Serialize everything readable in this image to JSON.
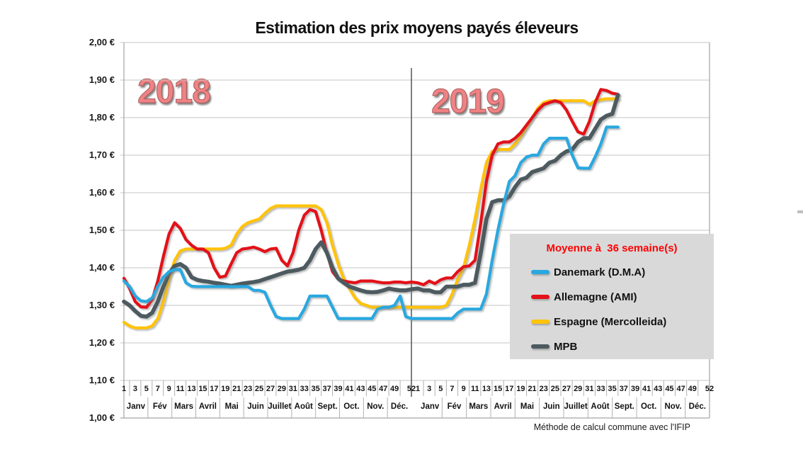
{
  "footer": {
    "note": "Méthode de calcul commune avec l'IFIP"
  },
  "legend": {
    "title": "Moyenne à  36 semaine(s)",
    "items": [
      {
        "label": "Danemark (D.M.A)"
      },
      {
        "label": "Allemagne (AMI)"
      },
      {
        "label": "Espagne (Mercolleida)"
      },
      {
        "label": "MPB"
      }
    ]
  },
  "chart_data": {
    "type": "line",
    "title": "Estimation des prix moyens payés éleveurs",
    "currency": "EUR",
    "ylim": [
      1.0,
      2.0
    ],
    "ytick_step": 0.1,
    "ytick_labels": [
      "2,00 €",
      "1,90 €",
      "1,80 €",
      "1,70 €",
      "1,60 €",
      "1,50 €",
      "1,40 €",
      "1,30 €",
      "1,20 €",
      "1,10 €",
      "1,00 €"
    ],
    "x_axis": {
      "years": [
        "2018",
        "2019"
      ],
      "week_ticks": [
        "1",
        "3",
        "5",
        "7",
        "9",
        "11",
        "13",
        "15",
        "17",
        "19",
        "21",
        "23",
        "25",
        "27",
        "29",
        "31",
        "33",
        "35",
        "37",
        "39",
        "41",
        "43",
        "45",
        "47",
        "49",
        "52"
      ],
      "months": [
        "Janv",
        "Fév",
        "Mars",
        "Avril",
        "Mai",
        "Juin",
        "Juillet",
        "Août",
        "Sept.",
        "Oct.",
        "Nov.",
        "Déc."
      ]
    },
    "grid": true,
    "legend_position": "right-middle",
    "series": [
      {
        "name": "Danemark (D.M.A)",
        "color": "#29A8E0",
        "values_2018": [
          1.365,
          1.35,
          1.325,
          1.312,
          1.31,
          1.32,
          1.35,
          1.375,
          1.39,
          1.395,
          1.395,
          1.36,
          1.351,
          1.35,
          1.35,
          1.35,
          1.35,
          1.35,
          1.35,
          1.35,
          1.35,
          1.35,
          1.35,
          1.34,
          1.34,
          1.335,
          1.3,
          1.27,
          1.265,
          1.265,
          1.265,
          1.265,
          1.29,
          1.325,
          1.325,
          1.325,
          1.325,
          1.295,
          1.265,
          1.265,
          1.265,
          1.265,
          1.265,
          1.265,
          1.265,
          1.29,
          1.295,
          1.295,
          1.3,
          1.325,
          1.27,
          1.265
        ],
        "values_2019": [
          1.265,
          1.265,
          1.265,
          1.265,
          1.265,
          1.265,
          1.265,
          1.28,
          1.29,
          1.29,
          1.29,
          1.29,
          1.33,
          1.42,
          1.5,
          1.57,
          1.63,
          1.645,
          1.68,
          1.695,
          1.7,
          1.7,
          1.73,
          1.745,
          1.745,
          1.745,
          1.745,
          1.7,
          1.666,
          1.665,
          1.665,
          1.695,
          1.73,
          1.775,
          1.775,
          1.775
        ]
      },
      {
        "name": "Allemagne (AMI)",
        "color": "#E31119",
        "values_2018": [
          1.372,
          1.345,
          1.31,
          1.296,
          1.295,
          1.315,
          1.365,
          1.43,
          1.49,
          1.52,
          1.505,
          1.475,
          1.46,
          1.45,
          1.45,
          1.44,
          1.4,
          1.375,
          1.378,
          1.41,
          1.44,
          1.45,
          1.452,
          1.455,
          1.45,
          1.443,
          1.45,
          1.452,
          1.42,
          1.405,
          1.44,
          1.5,
          1.54,
          1.555,
          1.55,
          1.5,
          1.44,
          1.39,
          1.37,
          1.365,
          1.362,
          1.36,
          1.365,
          1.365,
          1.365,
          1.362,
          1.36,
          1.36,
          1.362,
          1.362,
          1.36,
          1.362
        ],
        "values_2019": [
          1.36,
          1.355,
          1.365,
          1.358,
          1.368,
          1.373,
          1.373,
          1.39,
          1.403,
          1.405,
          1.42,
          1.52,
          1.63,
          1.7,
          1.73,
          1.735,
          1.735,
          1.745,
          1.76,
          1.78,
          1.8,
          1.82,
          1.835,
          1.84,
          1.845,
          1.84,
          1.82,
          1.79,
          1.762,
          1.756,
          1.79,
          1.84,
          1.875,
          1.872,
          1.865,
          1.862
        ]
      },
      {
        "name": "Espagne (Mercolleida)",
        "color": "#FFC30B",
        "values_2018": [
          1.255,
          1.245,
          1.24,
          1.24,
          1.24,
          1.245,
          1.265,
          1.31,
          1.37,
          1.42,
          1.445,
          1.45,
          1.45,
          1.45,
          1.45,
          1.45,
          1.45,
          1.45,
          1.452,
          1.46,
          1.49,
          1.51,
          1.52,
          1.525,
          1.53,
          1.545,
          1.558,
          1.565,
          1.565,
          1.565,
          1.565,
          1.565,
          1.565,
          1.565,
          1.565,
          1.555,
          1.52,
          1.46,
          1.41,
          1.37,
          1.345,
          1.32,
          1.305,
          1.3,
          1.295,
          1.295,
          1.295,
          1.295,
          1.295,
          1.295,
          1.295,
          1.295
        ],
        "values_2019": [
          1.295,
          1.295,
          1.295,
          1.295,
          1.295,
          1.3,
          1.33,
          1.37,
          1.4,
          1.46,
          1.53,
          1.61,
          1.68,
          1.71,
          1.715,
          1.715,
          1.715,
          1.73,
          1.75,
          1.775,
          1.8,
          1.825,
          1.84,
          1.845,
          1.845,
          1.845,
          1.845,
          1.845,
          1.845,
          1.845,
          1.835,
          1.845,
          1.848,
          1.85,
          1.85,
          1.85
        ]
      },
      {
        "name": "MPB",
        "color": "#4D5A5F",
        "values_2018": [
          1.31,
          1.3,
          1.285,
          1.272,
          1.27,
          1.28,
          1.31,
          1.35,
          1.385,
          1.405,
          1.41,
          1.4,
          1.375,
          1.368,
          1.365,
          1.363,
          1.36,
          1.358,
          1.355,
          1.352,
          1.355,
          1.358,
          1.36,
          1.362,
          1.365,
          1.37,
          1.375,
          1.38,
          1.385,
          1.39,
          1.392,
          1.395,
          1.4,
          1.42,
          1.45,
          1.468,
          1.44,
          1.4,
          1.372,
          1.36,
          1.35,
          1.345,
          1.34,
          1.336,
          1.335,
          1.336,
          1.34,
          1.345,
          1.342,
          1.34,
          1.34,
          1.343
        ],
        "values_2019": [
          1.345,
          1.34,
          1.34,
          1.335,
          1.335,
          1.35,
          1.35,
          1.35,
          1.355,
          1.355,
          1.36,
          1.44,
          1.53,
          1.575,
          1.58,
          1.58,
          1.59,
          1.615,
          1.635,
          1.64,
          1.655,
          1.66,
          1.665,
          1.68,
          1.685,
          1.7,
          1.71,
          1.715,
          1.735,
          1.745,
          1.745,
          1.77,
          1.795,
          1.805,
          1.81,
          1.86
        ]
      }
    ]
  }
}
